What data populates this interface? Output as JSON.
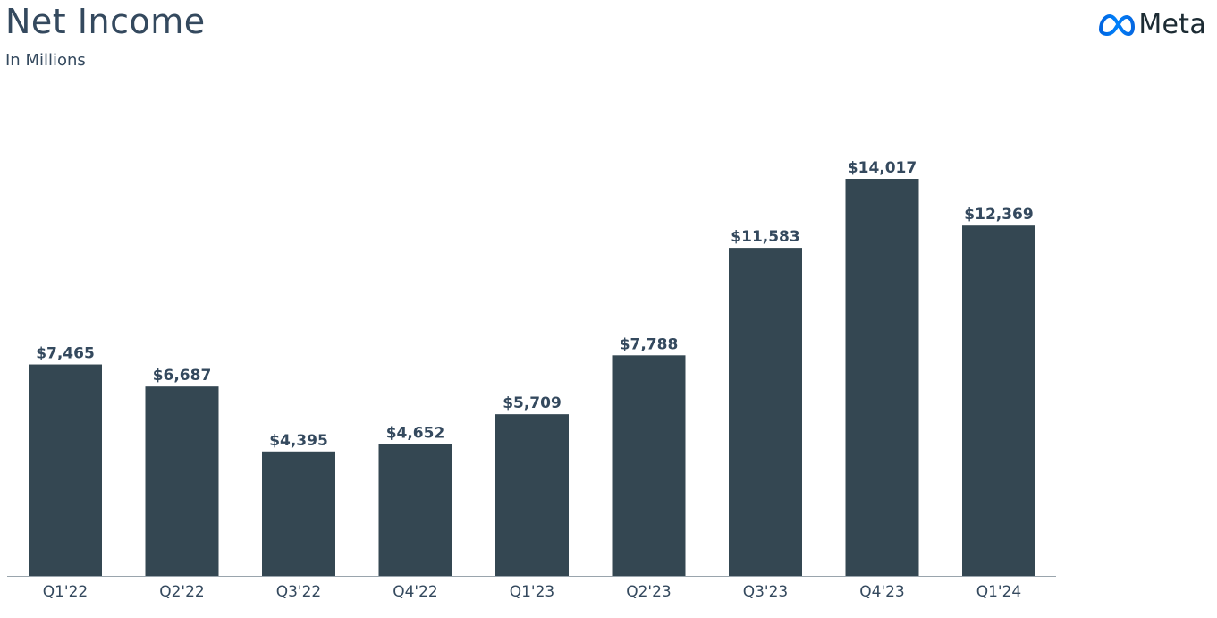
{
  "header": {
    "title": "Net Income",
    "subtitle": "In Millions"
  },
  "brand": {
    "name": "Meta",
    "icon": "meta-infinity-logo",
    "colors": [
      "#0668E1",
      "#0081FB",
      "#0064E0"
    ]
  },
  "colors": {
    "bar": "#344752",
    "axis": "#9aa5ad",
    "text": "#34495e"
  },
  "chart_data": {
    "type": "bar",
    "title": "Net Income",
    "subtitle": "In Millions",
    "xlabel": "",
    "ylabel": "",
    "categories": [
      "Q1'22",
      "Q2'22",
      "Q3'22",
      "Q4'22",
      "Q1'23",
      "Q2'23",
      "Q3'23",
      "Q4'23",
      "Q1'24"
    ],
    "values": [
      7465,
      6687,
      4395,
      4652,
      5709,
      7788,
      11583,
      14017,
      12369
    ],
    "data_labels": [
      "$7,465",
      "$6,687",
      "$4,395",
      "$4,652",
      "$5,709",
      "$7,788",
      "$11,583",
      "$14,017",
      "$12,369"
    ],
    "ylim": [
      0,
      14500
    ],
    "grid": false,
    "legend": "none"
  }
}
